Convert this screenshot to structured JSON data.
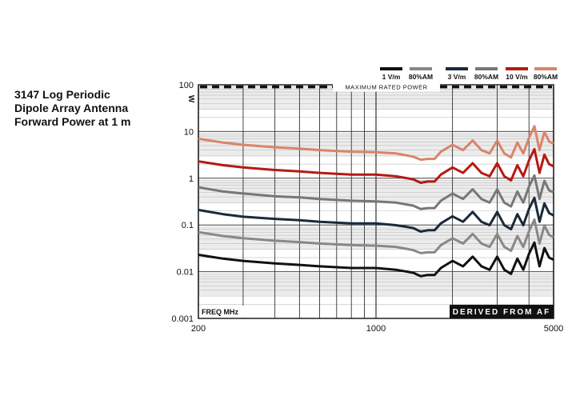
{
  "chart_data": {
    "type": "line",
    "title_lines": [
      "3147 Log Periodic",
      "Dipole Array Antenna",
      "Forward Power at 1 m"
    ],
    "ylabel": "W",
    "xlabel": "FREQ MHz",
    "x_scale": "log",
    "y_scale": "log",
    "xlim": [
      200,
      5000
    ],
    "ylim": [
      0.001,
      100
    ],
    "x_tick_labels": [
      "200",
      "1000",
      "5000"
    ],
    "y_tick_labels": [
      "100",
      "10",
      "1",
      "0.1",
      "0.01",
      "0.001"
    ],
    "annotations": {
      "max_power": "MAXIMUM RATED POWER",
      "derived": "DERIVED FROM AF"
    },
    "max_rated_power": 90,
    "x": [
      200,
      250,
      300,
      400,
      500,
      600,
      800,
      1000,
      1200,
      1400,
      1500,
      1600,
      1700,
      1800,
      2000,
      2200,
      2400,
      2600,
      2800,
      3000,
      3200,
      3400,
      3600,
      3800,
      4000,
      4200,
      4400,
      4600,
      4800,
      5000
    ],
    "series": [
      {
        "name": "1 V/m",
        "color": "#111111",
        "values": [
          0.023,
          0.019,
          0.017,
          0.015,
          0.014,
          0.013,
          0.012,
          0.012,
          0.011,
          0.0095,
          0.008,
          0.0085,
          0.0085,
          0.012,
          0.017,
          0.013,
          0.021,
          0.013,
          0.011,
          0.021,
          0.011,
          0.009,
          0.019,
          0.011,
          0.024,
          0.042,
          0.013,
          0.032,
          0.02,
          0.018
        ]
      },
      {
        "name": "80%AM",
        "color": "#888888",
        "values": [
          0.07,
          0.058,
          0.052,
          0.046,
          0.043,
          0.04,
          0.037,
          0.036,
          0.034,
          0.029,
          0.025,
          0.026,
          0.026,
          0.037,
          0.052,
          0.04,
          0.064,
          0.04,
          0.034,
          0.064,
          0.034,
          0.028,
          0.058,
          0.034,
          0.073,
          0.13,
          0.04,
          0.098,
          0.061,
          0.055
        ]
      },
      {
        "name": "3 V/m",
        "color": "#1a2a3a",
        "values": [
          0.21,
          0.17,
          0.15,
          0.135,
          0.126,
          0.117,
          0.108,
          0.108,
          0.099,
          0.086,
          0.072,
          0.077,
          0.077,
          0.108,
          0.153,
          0.117,
          0.19,
          0.117,
          0.099,
          0.19,
          0.099,
          0.081,
          0.17,
          0.099,
          0.22,
          0.38,
          0.117,
          0.29,
          0.18,
          0.16
        ]
      },
      {
        "name": "80%AM",
        "color": "#777777",
        "values": [
          0.64,
          0.52,
          0.47,
          0.41,
          0.39,
          0.36,
          0.33,
          0.32,
          0.3,
          0.26,
          0.22,
          0.23,
          0.23,
          0.33,
          0.47,
          0.36,
          0.58,
          0.36,
          0.3,
          0.58,
          0.3,
          0.25,
          0.52,
          0.3,
          0.66,
          1.15,
          0.36,
          0.88,
          0.55,
          0.5
        ]
      },
      {
        "name": "10 V/m",
        "color": "#b51a12",
        "values": [
          2.3,
          1.9,
          1.7,
          1.5,
          1.4,
          1.3,
          1.2,
          1.2,
          1.1,
          0.95,
          0.8,
          0.85,
          0.85,
          1.2,
          1.7,
          1.3,
          2.1,
          1.3,
          1.1,
          2.1,
          1.1,
          0.9,
          1.9,
          1.1,
          2.4,
          4.2,
          1.3,
          3.2,
          2.0,
          1.8
        ]
      },
      {
        "name": "80%AM",
        "color": "#d9846a",
        "values": [
          7.0,
          5.8,
          5.2,
          4.6,
          4.3,
          4.0,
          3.7,
          3.6,
          3.4,
          2.9,
          2.5,
          2.6,
          2.6,
          3.7,
          5.2,
          4.0,
          6.4,
          4.0,
          3.4,
          6.4,
          3.4,
          2.8,
          5.8,
          3.4,
          7.3,
          13.0,
          4.0,
          9.8,
          6.1,
          5.5
        ]
      }
    ]
  }
}
